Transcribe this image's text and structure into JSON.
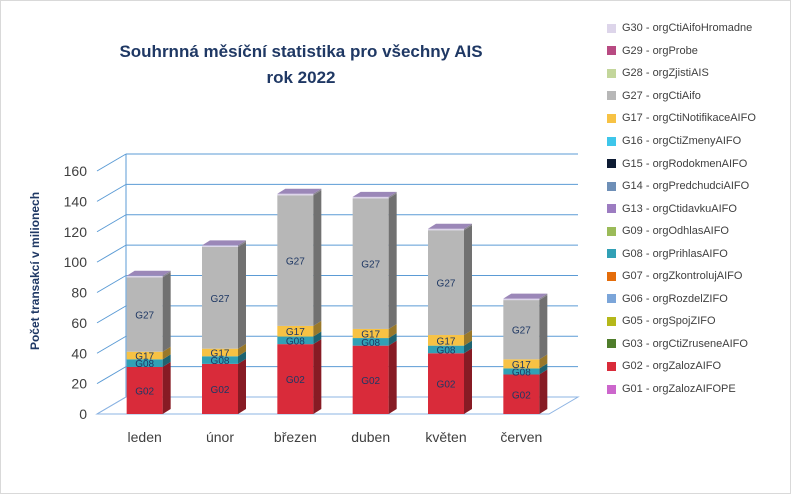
{
  "chart_data": {
    "type": "bar",
    "stacked": true,
    "three_d": true,
    "title_line1": "Souhrnná měsíční statistika pro všechny AIS",
    "title_line2": "rok 2022",
    "ylabel": "Počet transakcí v milionech",
    "xlabel": "",
    "ylim": [
      0,
      160
    ],
    "yticks": [
      0,
      20,
      40,
      60,
      80,
      100,
      120,
      140,
      160
    ],
    "categories": [
      "leden",
      "únor",
      "březen",
      "duben",
      "květen",
      "červen"
    ],
    "grid": true,
    "legend_position": "right",
    "legend": [
      {
        "label": "G30 - orgCtiAifoHromadne",
        "color": "#ddd5ea"
      },
      {
        "label": "G29 - orgProbe",
        "color": "#b84a82"
      },
      {
        "label": "G28 - orgZjistiAIS",
        "color": "#c3d69b"
      },
      {
        "label": "G27 - orgCtiAifo",
        "color": "#b7b7b7"
      },
      {
        "label": "G17 - orgCtiNotifikaceAIFO",
        "color": "#f7c244"
      },
      {
        "label": "G16 - orgCtiZmenyAIFO",
        "color": "#3ec6ea"
      },
      {
        "label": "G15 - orgRodokmenAIFO",
        "color": "#0d1b33"
      },
      {
        "label": "G14 - orgPredchudciAIFO",
        "color": "#6e8fb7"
      },
      {
        "label": "G13 - orgCtidavkuAIFO",
        "color": "#9c7cc1"
      },
      {
        "label": "G09 - orgOdhlasAIFO",
        "color": "#9bbb59"
      },
      {
        "label": "G08 - orgPrihlasAIFO",
        "color": "#31a0b5"
      },
      {
        "label": "G07 - orgZkontrolujAIFO",
        "color": "#e46c0a"
      },
      {
        "label": "G06 - orgRozdelZIFO",
        "color": "#7ba5d9"
      },
      {
        "label": "G05 - orgSpojZIFO",
        "color": "#b5b81a"
      },
      {
        "label": "G03 - orgCtiZruseneAIFO",
        "color": "#4f7d2b"
      },
      {
        "label": "G02 - orgZalozAIFO",
        "color": "#d92b3a"
      },
      {
        "label": "G01 - orgZalozAIFOPE",
        "color": "#cc66cc"
      }
    ],
    "series": [
      {
        "name": "G02",
        "color": "#d92b3a",
        "label": "G02",
        "values": [
          31,
          33,
          46,
          45,
          40,
          26
        ]
      },
      {
        "name": "G08",
        "color": "#31a0b5",
        "label": "G08",
        "values": [
          5,
          5,
          5,
          5,
          5,
          4
        ]
      },
      {
        "name": "G17",
        "color": "#f7c244",
        "label": "G17",
        "values": [
          5,
          5,
          7,
          6,
          7,
          6
        ]
      },
      {
        "name": "G27",
        "color": "#b7b7b7",
        "label": "G27",
        "values": [
          49,
          67,
          86,
          86,
          69,
          39
        ]
      },
      {
        "name": "G30",
        "color": "#ddd5ea",
        "label": "",
        "values": [
          1,
          1,
          1,
          1,
          1,
          1
        ]
      }
    ]
  }
}
